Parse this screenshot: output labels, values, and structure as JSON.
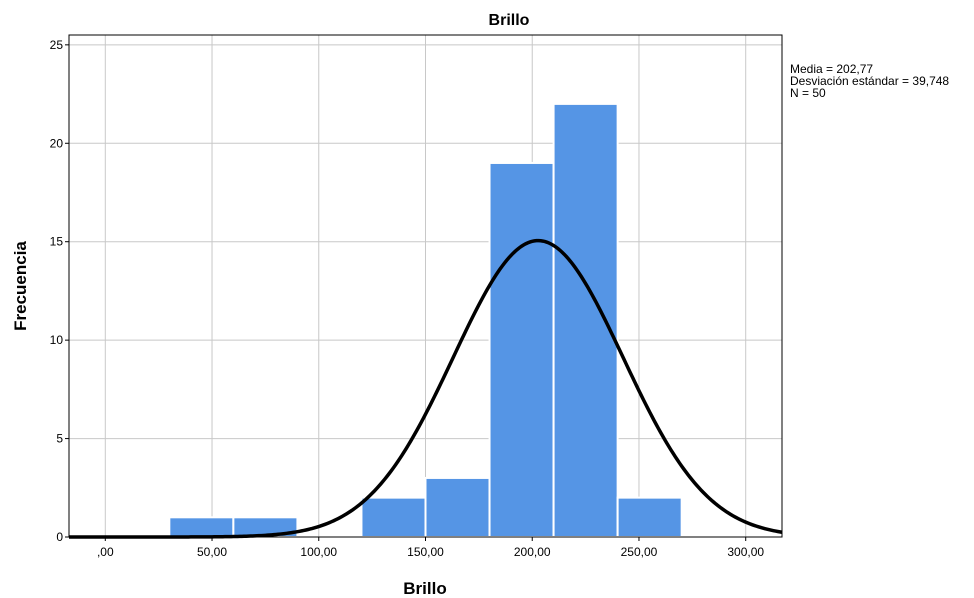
{
  "chart_data": {
    "type": "bar",
    "title": "Brillo",
    "xlabel": "Brillo",
    "ylabel": "Frecuencia",
    "xlim": [
      -17,
      317
    ],
    "ylim": [
      0,
      25.5
    ],
    "x_ticks": [
      0,
      50,
      100,
      150,
      200,
      250,
      300
    ],
    "x_tick_labels": [
      ",00",
      "50,00",
      "100,00",
      "150,00",
      "200,00",
      "250,00",
      "300,00"
    ],
    "y_ticks": [
      0,
      5,
      10,
      15,
      20,
      25
    ],
    "y_tick_labels": [
      "0",
      "5",
      "10",
      "15",
      "20",
      "25"
    ],
    "bin_width": 30,
    "bins": [
      {
        "start": 30,
        "end": 60,
        "count": 1
      },
      {
        "start": 60,
        "end": 90,
        "count": 1
      },
      {
        "start": 90,
        "end": 120,
        "count": 0
      },
      {
        "start": 120,
        "end": 150,
        "count": 2
      },
      {
        "start": 150,
        "end": 180,
        "count": 3
      },
      {
        "start": 180,
        "end": 210,
        "count": 19
      },
      {
        "start": 210,
        "end": 240,
        "count": 22
      },
      {
        "start": 240,
        "end": 270,
        "count": 2
      }
    ],
    "normal_curve": {
      "mean": 202.77,
      "std": 39.748,
      "n": 50
    },
    "grid": true,
    "stats_position": "top-right",
    "stats": [
      "Media = 202,77",
      "Desviación estándar = 39,748",
      "N = 50"
    ]
  },
  "colors": {
    "bar": "#5595e5",
    "curve": "#000000",
    "grid": "#c8c8c8"
  }
}
